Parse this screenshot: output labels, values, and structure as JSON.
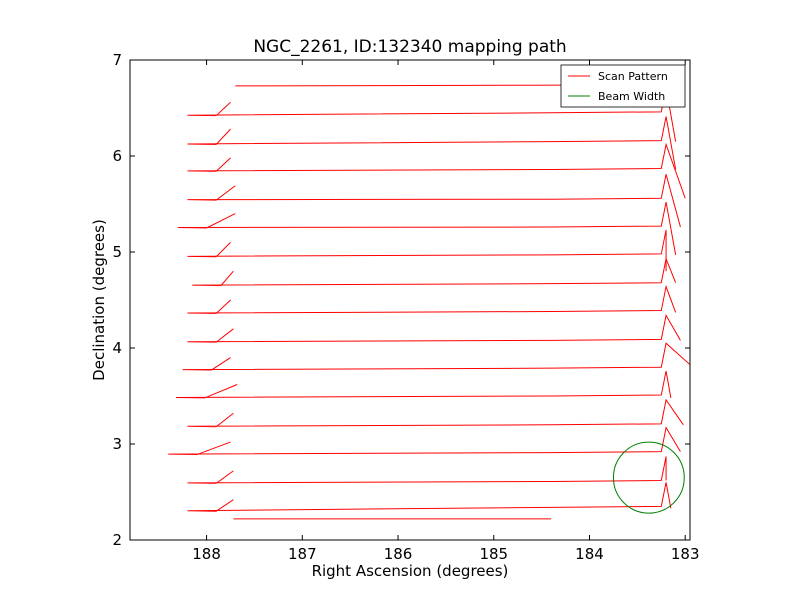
{
  "chart_data": {
    "type": "line",
    "title": "NGC_2261, ID:132340 mapping path",
    "xlabel": "Right Ascension (degrees)",
    "ylabel": "Declination (degrees)",
    "xlim": [
      188.8,
      182.95
    ],
    "ylim": [
      2,
      7
    ],
    "x_inverted": true,
    "xticks": [
      188,
      187,
      186,
      185,
      184,
      183
    ],
    "yticks": [
      2,
      3,
      4,
      5,
      6,
      7
    ],
    "grid": false,
    "legend": {
      "position": "top-right",
      "entries": [
        {
          "label": "Scan Pattern",
          "color": "#ff0000"
        },
        {
          "label": "Beam Width",
          "color": "#008000"
        }
      ]
    },
    "series": [
      {
        "name": "Scan Pattern",
        "color": "#ff0000",
        "row_ends": [
          [
            187.75,
            6.56,
            183.2,
            6.43
          ],
          [
            187.75,
            6.28,
            183.2,
            6.13
          ],
          [
            187.75,
            5.98,
            183.2,
            5.84
          ],
          [
            187.7,
            5.69,
            183.2,
            5.53
          ],
          [
            187.7,
            5.4,
            183.2,
            5.24
          ],
          [
            187.75,
            5.1,
            183.2,
            4.95
          ],
          [
            187.72,
            4.8,
            183.2,
            4.65
          ],
          [
            187.75,
            4.5,
            183.2,
            4.36
          ],
          [
            187.72,
            4.2,
            183.2,
            4.06
          ],
          [
            187.75,
            3.9,
            183.2,
            3.77
          ],
          [
            187.68,
            3.62,
            183.2,
            3.48
          ],
          [
            187.72,
            3.32,
            183.2,
            3.18
          ],
          [
            187.75,
            3.02,
            183.2,
            2.89
          ],
          [
            187.72,
            2.72,
            183.2,
            2.59
          ],
          [
            187.72,
            2.42,
            183.2,
            2.32
          ]
        ],
        "row_start_offsets": [
          [
            187.9,
            6.42
          ],
          [
            187.9,
            6.12
          ],
          [
            187.9,
            5.84
          ],
          [
            187.9,
            5.54
          ],
          [
            188.0,
            5.25
          ],
          [
            187.9,
            4.95
          ],
          [
            187.85,
            4.65
          ],
          [
            187.9,
            4.36
          ],
          [
            187.9,
            4.06
          ],
          [
            187.95,
            3.77
          ],
          [
            188.02,
            3.48
          ],
          [
            187.9,
            3.18
          ],
          [
            188.1,
            2.89
          ],
          [
            187.9,
            2.59
          ],
          [
            187.9,
            2.3
          ]
        ],
        "row_end_offsets": [
          [
            183.1,
            6.15
          ],
          [
            183.1,
            5.86
          ],
          [
            183.0,
            5.56
          ],
          [
            183.05,
            5.26
          ],
          [
            183.1,
            4.97
          ],
          [
            183.2,
            4.8
          ],
          [
            183.1,
            4.68
          ],
          [
            183.1,
            4.37
          ],
          [
            183.05,
            4.08
          ],
          [
            182.92,
            3.8
          ],
          [
            183.15,
            3.48
          ],
          [
            183.02,
            3.2
          ],
          [
            183.05,
            2.92
          ],
          [
            183.2,
            2.62
          ],
          [
            183.15,
            2.33
          ]
        ],
        "top_line": [
          [
            187.7,
            6.73
          ],
          [
            183.2,
            6.74
          ]
        ],
        "bottom_end": [
          [
            187.72,
            2.22
          ],
          [
            184.4,
            2.22
          ]
        ]
      },
      {
        "name": "Beam Width",
        "color": "#008000",
        "shape": "circle",
        "center": [
          183.38,
          2.65
        ],
        "radius_deg": 0.37
      }
    ]
  }
}
